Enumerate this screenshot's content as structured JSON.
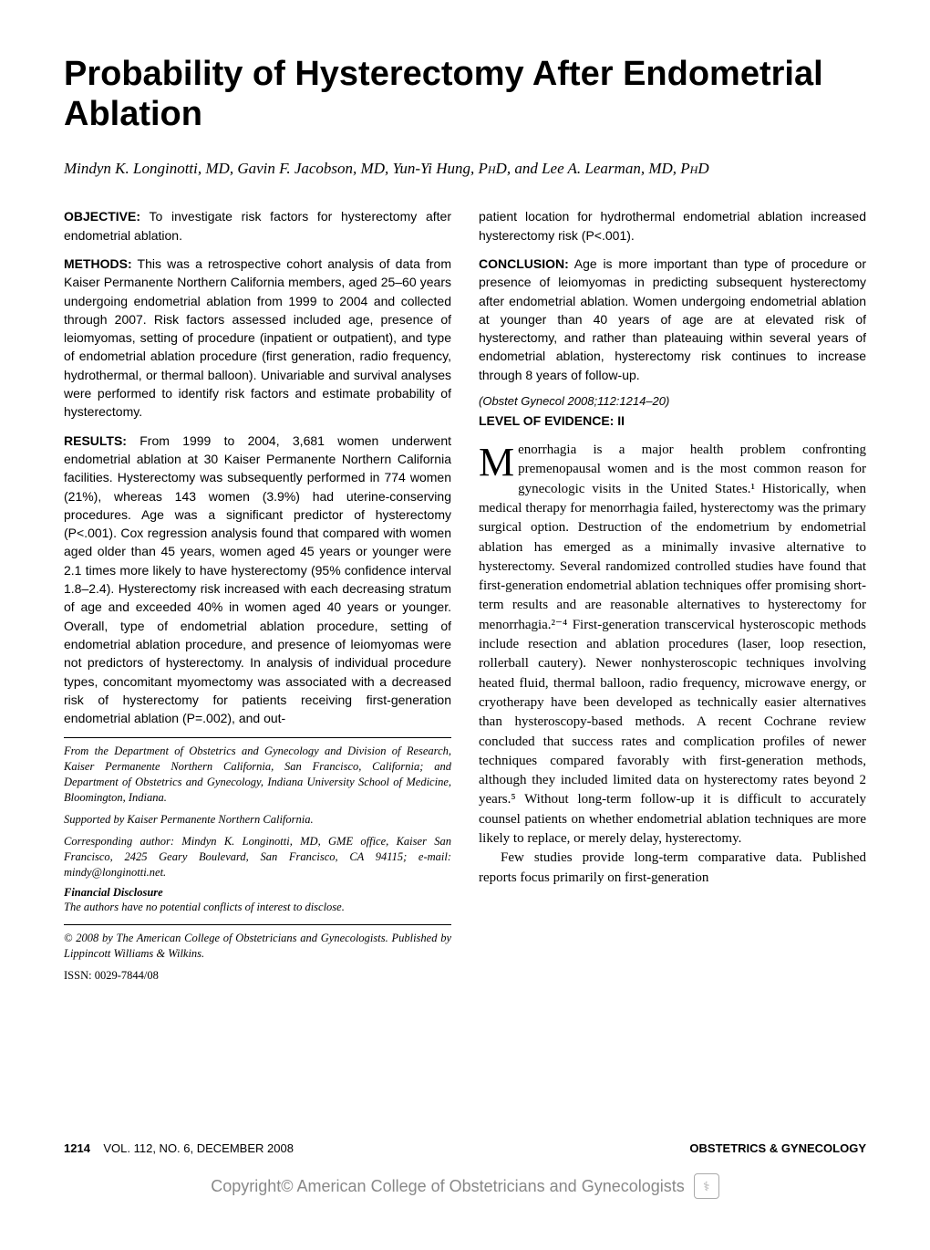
{
  "title": "Probability of Hysterectomy After Endometrial Ablation",
  "authors_html": "Mindyn K. Longinotti, MD, Gavin F. Jacobson, MD, Yun-Yi Hung, PhD, and Lee A. Learman, MD, PhD",
  "abstract": {
    "objective": {
      "label": "OBJECTIVE:",
      "text": "To investigate risk factors for hysterectomy after endometrial ablation."
    },
    "methods": {
      "label": "METHODS:",
      "text": "This was a retrospective cohort analysis of data from Kaiser Permanente Northern California members, aged 25–60 years undergoing endometrial ablation from 1999 to 2004 and collected through 2007. Risk factors assessed included age, presence of leiomyomas, setting of procedure (inpatient or outpatient), and type of endometrial ablation procedure (first generation, radio frequency, hydrothermal, or thermal balloon). Univariable and survival analyses were performed to identify risk factors and estimate probability of hysterectomy."
    },
    "results": {
      "label": "RESULTS:",
      "text_part1": "From 1999 to 2004, 3,681 women underwent endometrial ablation at 30 Kaiser Permanente Northern California facilities. Hysterectomy was subsequently performed in 774 women (21%), whereas 143 women (3.9%) had uterine-conserving procedures. Age was a significant predictor of hysterectomy (P<.001). Cox regression analysis found that compared with women aged older than 45 years, women aged 45 years or younger were 2.1 times more likely to have hysterectomy (95% confidence interval 1.8–2.4). Hysterectomy risk increased with each decreasing stratum of age and exceeded 40% in women aged 40 years or younger. Overall, type of endometrial ablation procedure, setting of endometrial ablation procedure, and presence of leiomyomas were not predictors of hysterectomy. In analysis of individual procedure types, concomitant myomectomy was associated with a decreased risk of hysterectomy for patients receiving first-generation endometrial ablation (P=.002), and out-",
      "text_part2": "patient location for hydrothermal endometrial ablation increased hysterectomy risk (P<.001)."
    },
    "conclusion": {
      "label": "CONCLUSION:",
      "text": "Age is more important than type of procedure or presence of leiomyomas in predicting subsequent hysterectomy after endometrial ablation. Women undergoing endometrial ablation at younger than 40 years of age are at elevated risk of hysterectomy, and rather than plateauing within several years of endometrial ablation, hysterectomy risk continues to increase through 8 years of follow-up."
    },
    "citation": "(Obstet Gynecol 2008;112:1214–20)",
    "loe": "LEVEL OF EVIDENCE: II"
  },
  "body": {
    "para1_dropcap": "M",
    "para1": "enorrhagia is a major health problem confronting premenopausal women and is the most common reason for gynecologic visits in the United States.¹ Historically, when medical therapy for menorrhagia failed, hysterectomy was the primary surgical option. Destruction of the endometrium by endometrial ablation has emerged as a minimally invasive alternative to hysterectomy. Several randomized controlled studies have found that first-generation endometrial ablation techniques offer promising short-term results and are reasonable alternatives to hysterectomy for menorrhagia.²⁻⁴ First-generation transcervical hysteroscopic methods include resection and ablation procedures (laser, loop resection, rollerball cautery). Newer nonhysteroscopic techniques involving heated fluid, thermal balloon, radio frequency, microwave energy, or cryotherapy have been developed as technically easier alternatives than hysteroscopy-based methods. A recent Cochrane review concluded that success rates and complication profiles of newer techniques compared favorably with first-generation methods, although they included limited data on hysterectomy rates beyond 2 years.⁵ Without long-term follow-up it is difficult to accurately counsel patients on whether endometrial ablation techniques are more likely to replace, or merely delay, hysterectomy.",
    "para2": "Few studies provide long-term comparative data. Published reports focus primarily on first-generation"
  },
  "footnotes": {
    "affiliation": "From the Department of Obstetrics and Gynecology and Division of Research, Kaiser Permanente Northern California, San Francisco, California; and Department of Obstetrics and Gynecology, Indiana University School of Medicine, Bloomington, Indiana.",
    "support": "Supported by Kaiser Permanente Northern California.",
    "corresponding": "Corresponding author: Mindyn K. Longinotti, MD, GME office, Kaiser San Francisco, 2425 Geary Boulevard, San Francisco, CA 94115; e-mail: mindy@longinotti.net.",
    "disclosure_label": "Financial Disclosure",
    "disclosure_text": "The authors have no potential conflicts of interest to disclose.",
    "copyright": "© 2008 by The American College of Obstetricians and Gynecologists. Published by Lippincott Williams & Wilkins.",
    "issn": "ISSN: 0029-7844/08"
  },
  "footer": {
    "page": "1214",
    "issue": "VOL. 112, NO. 6, DECEMBER 2008",
    "journal": "OBSTETRICS & GYNECOLOGY"
  },
  "copyright_bar": "Copyright© American College of Obstetricians and Gynecologists"
}
